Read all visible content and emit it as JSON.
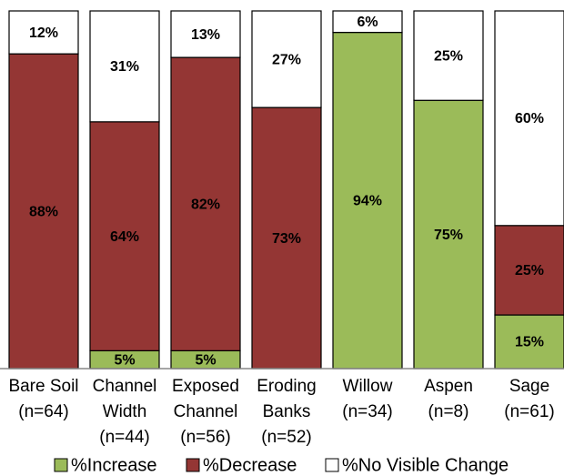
{
  "chart_data": {
    "type": "stacked_bar",
    "categories": [
      [
        "Bare Soil",
        "(n=64)"
      ],
      [
        "Channel",
        "Width",
        "(n=44)"
      ],
      [
        "Exposed",
        "Channel",
        "(n=56)"
      ],
      [
        "Eroding",
        "Banks",
        "(n=52)"
      ],
      [
        "Willow",
        "(n=34)"
      ],
      [
        "Aspen",
        "(n=8)"
      ],
      [
        "Sage",
        "(n=61)"
      ]
    ],
    "series": [
      {
        "name": "%Increase",
        "color": "#9bbb59",
        "values": [
          0,
          5,
          5,
          0,
          94,
          75,
          15
        ],
        "value_labels": [
          null,
          "5%",
          "5%",
          null,
          "94%",
          "75%",
          "15%"
        ]
      },
      {
        "name": "%Decrease",
        "color": "#943634",
        "values": [
          88,
          64,
          82,
          73,
          0,
          0,
          25
        ],
        "value_labels": [
          "88%",
          "64%",
          "82%",
          "73%",
          null,
          null,
          "25%"
        ]
      },
      {
        "name": "%No Visible Change",
        "color": "#ffffff",
        "values": [
          12,
          31,
          13,
          27,
          6,
          25,
          60
        ],
        "value_labels": [
          "12%",
          "31%",
          "13%",
          "27%",
          "6%",
          "25%",
          "60%"
        ]
      }
    ],
    "ylim": [
      0,
      100
    ],
    "legend": "bottom"
  }
}
